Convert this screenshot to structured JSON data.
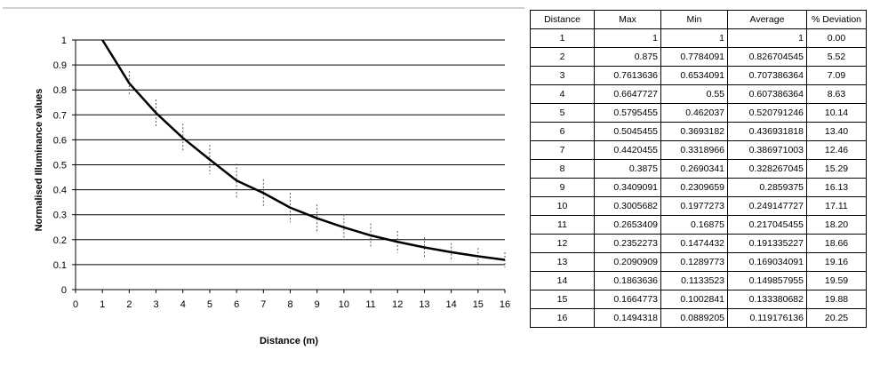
{
  "chart_data": {
    "type": "line",
    "xlabel": "Distance (m)",
    "ylabel": "Normalised Illuminance values",
    "xlim": [
      0,
      16
    ],
    "ylim": [
      0,
      1
    ],
    "x_ticks": [
      "0",
      "1",
      "2",
      "3",
      "4",
      "5",
      "6",
      "7",
      "8",
      "9",
      "10",
      "11",
      "12",
      "13",
      "14",
      "15",
      "16"
    ],
    "y_ticks": [
      "0",
      "0.1",
      "0.2",
      "0.3",
      "0.4",
      "0.5",
      "0.6",
      "0.7",
      "0.8",
      "0.9",
      "1"
    ],
    "grid": "horizontal",
    "series": [
      {
        "x": [
          1,
          2,
          3,
          4,
          5,
          6,
          7,
          8,
          9,
          10,
          11,
          12,
          13,
          14,
          15,
          16
        ],
        "y": [
          1,
          0.826704545,
          0.707386364,
          0.607386364,
          0.520791246,
          0.436931818,
          0.386971003,
          0.328267045,
          0.2859375,
          0.249147727,
          0.217045455,
          0.191335227,
          0.169034091,
          0.149857955,
          0.133380682,
          0.119176136
        ]
      }
    ],
    "range_bars": {
      "x": [
        1,
        2,
        3,
        4,
        5,
        6,
        7,
        8,
        9,
        10,
        11,
        12,
        13,
        14,
        15,
        16
      ],
      "max": [
        1,
        0.875,
        0.7613636,
        0.6647727,
        0.5795455,
        0.5045455,
        0.4420455,
        0.3875,
        0.3409091,
        0.3005682,
        0.2653409,
        0.2352273,
        0.2090909,
        0.1863636,
        0.1664773,
        0.1494318
      ],
      "min": [
        1,
        0.7784091,
        0.6534091,
        0.55,
        0.462037,
        0.3693182,
        0.3318966,
        0.2690341,
        0.2309659,
        0.1977273,
        0.16875,
        0.1474432,
        0.1289773,
        0.1133523,
        0.1002841,
        0.0889205
      ]
    }
  },
  "table": {
    "headers": [
      "Distance",
      "Max",
      "Min",
      "Average",
      "% Deviation"
    ],
    "rows": [
      [
        "1",
        "1",
        "1",
        "1",
        "0.00"
      ],
      [
        "2",
        "0.875",
        "0.7784091",
        "0.826704545",
        "5.52"
      ],
      [
        "3",
        "0.7613636",
        "0.6534091",
        "0.707386364",
        "7.09"
      ],
      [
        "4",
        "0.6647727",
        "0.55",
        "0.607386364",
        "8.63"
      ],
      [
        "5",
        "0.5795455",
        "0.462037",
        "0.520791246",
        "10.14"
      ],
      [
        "6",
        "0.5045455",
        "0.3693182",
        "0.436931818",
        "13.40"
      ],
      [
        "7",
        "0.4420455",
        "0.3318966",
        "0.386971003",
        "12.46"
      ],
      [
        "8",
        "0.3875",
        "0.2690341",
        "0.328267045",
        "15.29"
      ],
      [
        "9",
        "0.3409091",
        "0.2309659",
        "0.2859375",
        "16.13"
      ],
      [
        "10",
        "0.3005682",
        "0.1977273",
        "0.249147727",
        "17.11"
      ],
      [
        "11",
        "0.2653409",
        "0.16875",
        "0.217045455",
        "18.20"
      ],
      [
        "12",
        "0.2352273",
        "0.1474432",
        "0.191335227",
        "18.66"
      ],
      [
        "13",
        "0.2090909",
        "0.1289773",
        "0.169034091",
        "19.16"
      ],
      [
        "14",
        "0.1863636",
        "0.1133523",
        "0.149857955",
        "19.59"
      ],
      [
        "15",
        "0.1664773",
        "0.1002841",
        "0.133380682",
        "19.88"
      ],
      [
        "16",
        "0.1494318",
        "0.0889205",
        "0.119176136",
        "20.25"
      ]
    ]
  }
}
